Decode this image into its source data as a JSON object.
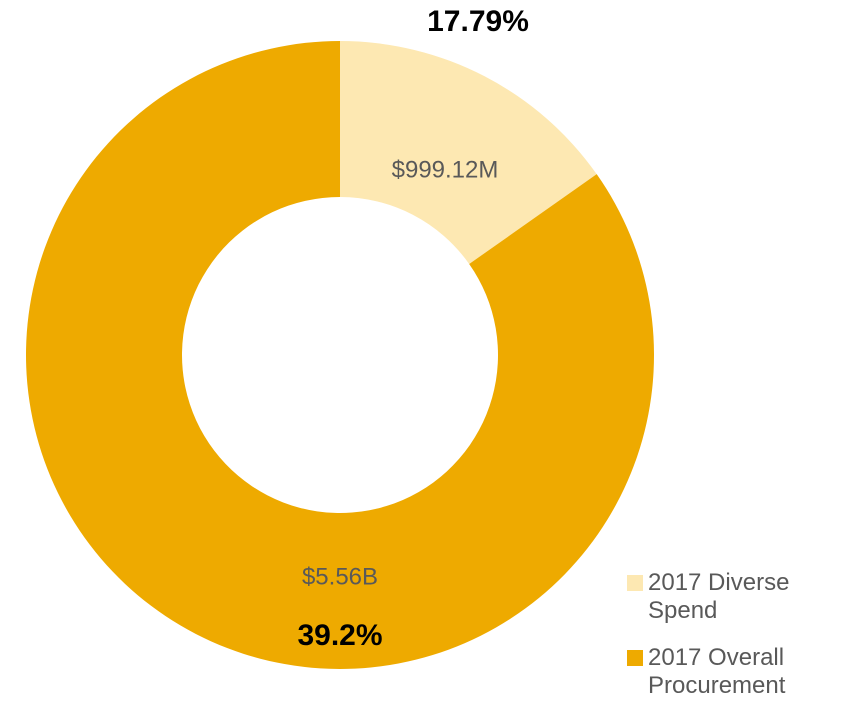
{
  "chart_data": {
    "type": "pie",
    "categories": [
      "2017 Diverse Spend",
      "2017 Overall Procurement"
    ],
    "values": [
      999120000,
      5560000000
    ],
    "value_labels": [
      "$999.12M",
      "$5.56B"
    ],
    "colors": [
      "#fde8b2",
      "#eeaa00"
    ],
    "donut": true,
    "annotations": [
      "17.79%",
      "39.2%"
    ],
    "legend": "bottom-right"
  }
}
